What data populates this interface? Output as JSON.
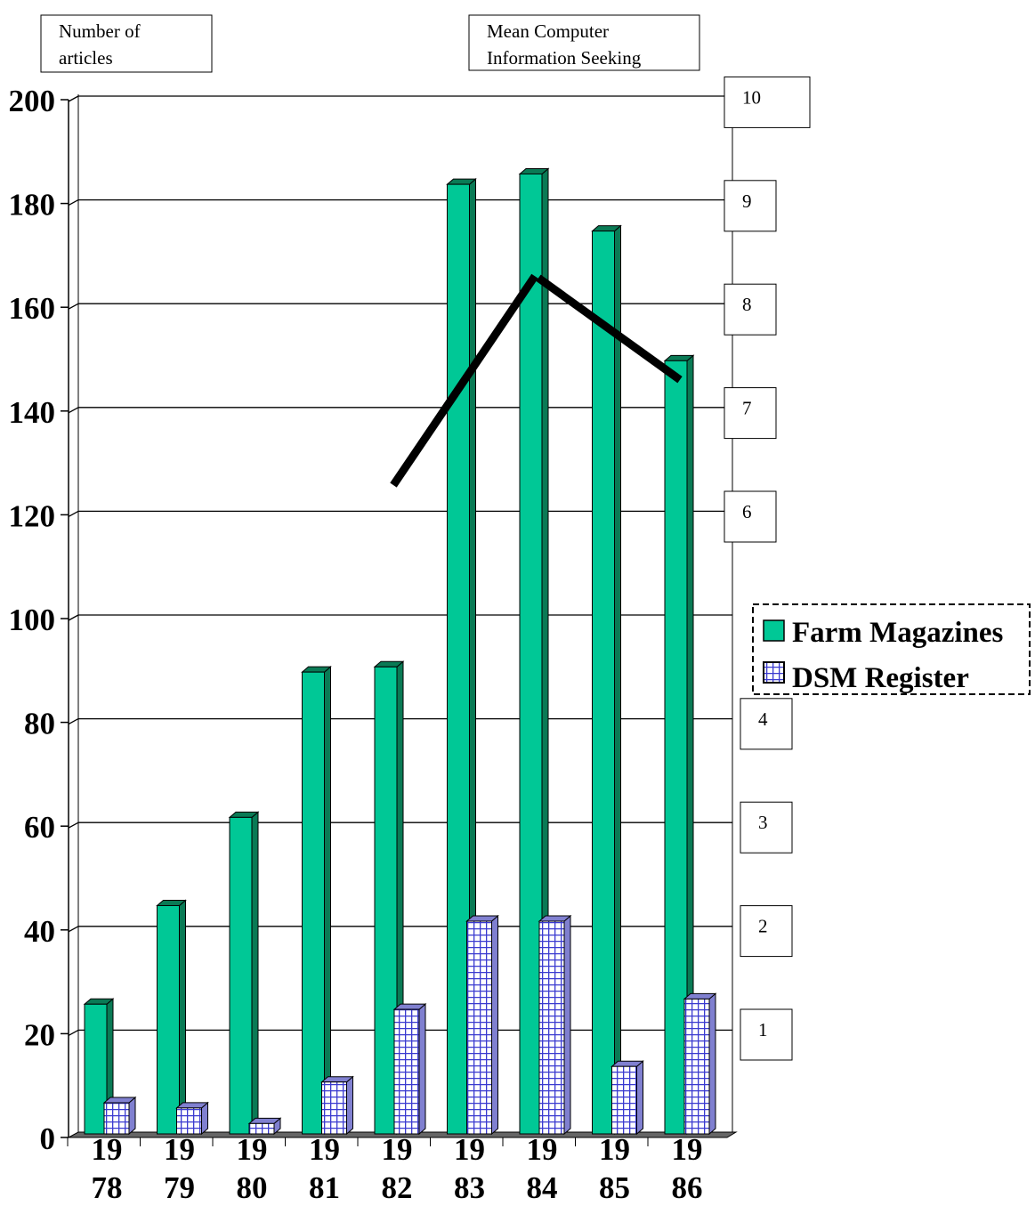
{
  "chart_data": {
    "type": "bar",
    "left_axis_label": "Number of articles",
    "left_axis_label_lines": [
      "Number of",
      "articles"
    ],
    "right_axis_label": "Mean Computer Information Seeking",
    "right_axis_label_lines": [
      "Mean Computer",
      "Information Seeking"
    ],
    "categories": [
      "19 78",
      "19 79",
      "19 80",
      "19 81",
      "19 82",
      "19 83",
      "19 84",
      "19 85",
      "19 86"
    ],
    "category_lines": [
      [
        "19",
        "78"
      ],
      [
        "19",
        "79"
      ],
      [
        "19",
        "80"
      ],
      [
        "19",
        "81"
      ],
      [
        "19",
        "82"
      ],
      [
        "19",
        "83"
      ],
      [
        "19",
        "84"
      ],
      [
        "19",
        "85"
      ],
      [
        "19",
        "86"
      ]
    ],
    "series": [
      {
        "name": "Farm Magazines",
        "color": "#00c896",
        "values": [
          25,
          44,
          61,
          89,
          90,
          183,
          185,
          174,
          149
        ]
      },
      {
        "name": "DSM Register",
        "color": "#3333cc",
        "pattern": "grid",
        "values": [
          6,
          5,
          2,
          10,
          24,
          41,
          41,
          13,
          26
        ]
      }
    ],
    "y_ticks": [
      "0",
      "20",
      "40",
      "60",
      "80",
      "100",
      "120",
      "140",
      "160",
      "180",
      "200"
    ],
    "ylim": [
      0,
      200
    ],
    "right_ticks": [
      "1",
      "2",
      "3",
      "4",
      "6",
      "7",
      "8",
      "9",
      "10"
    ],
    "right_tick_values": [
      1,
      2,
      3,
      4,
      6,
      7,
      8,
      9,
      10
    ],
    "mean_line": {
      "x": [
        "19 82",
        "19 84",
        "19 86"
      ],
      "values": [
        6.3,
        8.3,
        7.3
      ]
    },
    "grid": true,
    "legend_position": "right"
  }
}
